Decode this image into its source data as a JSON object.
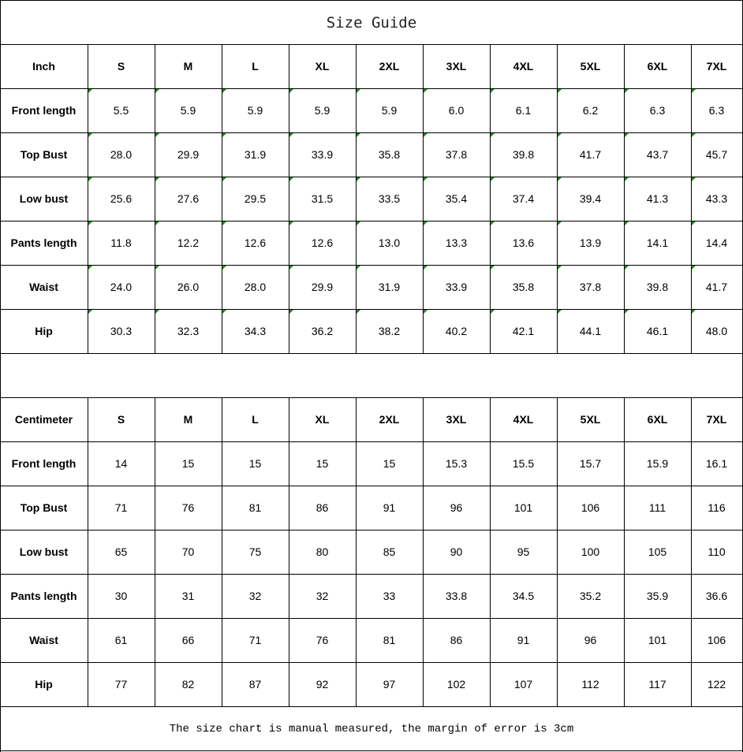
{
  "title": "Size Guide",
  "sizes": [
    "S",
    "M",
    "L",
    "XL",
    "2XL",
    "3XL",
    "4XL",
    "5XL",
    "6XL",
    "7XL"
  ],
  "marker_color": "#1a8a1a",
  "inch_table": {
    "unit_label": "Inch",
    "rows": [
      {
        "label": "Front length",
        "values": [
          "5.5",
          "5.9",
          "5.9",
          "5.9",
          "5.9",
          "6.0",
          "6.1",
          "6.2",
          "6.3",
          "6.3"
        ]
      },
      {
        "label": "Top Bust",
        "values": [
          "28.0",
          "29.9",
          "31.9",
          "33.9",
          "35.8",
          "37.8",
          "39.8",
          "41.7",
          "43.7",
          "45.7"
        ]
      },
      {
        "label": "Low bust",
        "values": [
          "25.6",
          "27.6",
          "29.5",
          "31.5",
          "33.5",
          "35.4",
          "37.4",
          "39.4",
          "41.3",
          "43.3"
        ]
      },
      {
        "label": "Pants length",
        "values": [
          "11.8",
          "12.2",
          "12.6",
          "12.6",
          "13.0",
          "13.3",
          "13.6",
          "13.9",
          "14.1",
          "14.4"
        ]
      },
      {
        "label": "Waist",
        "values": [
          "24.0",
          "26.0",
          "28.0",
          "29.9",
          "31.9",
          "33.9",
          "35.8",
          "37.8",
          "39.8",
          "41.7"
        ]
      },
      {
        "label": "Hip",
        "values": [
          "30.3",
          "32.3",
          "34.3",
          "36.2",
          "38.2",
          "40.2",
          "42.1",
          "44.1",
          "46.1",
          "48.0"
        ]
      }
    ]
  },
  "cm_table": {
    "unit_label": "Centimeter",
    "rows": [
      {
        "label": "Front length",
        "values": [
          "14",
          "15",
          "15",
          "15",
          "15",
          "15.3",
          "15.5",
          "15.7",
          "15.9",
          "16.1"
        ]
      },
      {
        "label": "Top Bust",
        "values": [
          "71",
          "76",
          "81",
          "86",
          "91",
          "96",
          "101",
          "106",
          "111",
          "116"
        ]
      },
      {
        "label": "Low bust",
        "values": [
          "65",
          "70",
          "75",
          "80",
          "85",
          "90",
          "95",
          "100",
          "105",
          "110"
        ]
      },
      {
        "label": "Pants length",
        "values": [
          "30",
          "31",
          "32",
          "32",
          "33",
          "33.8",
          "34.5",
          "35.2",
          "35.9",
          "36.6"
        ]
      },
      {
        "label": "Waist",
        "values": [
          "61",
          "66",
          "71",
          "76",
          "81",
          "86",
          "91",
          "96",
          "101",
          "106"
        ]
      },
      {
        "label": "Hip",
        "values": [
          "77",
          "82",
          "87",
          "92",
          "97",
          "102",
          "107",
          "112",
          "117",
          "122"
        ]
      }
    ]
  },
  "footnote": "The size chart is manual measured, the margin of error is 3cm"
}
